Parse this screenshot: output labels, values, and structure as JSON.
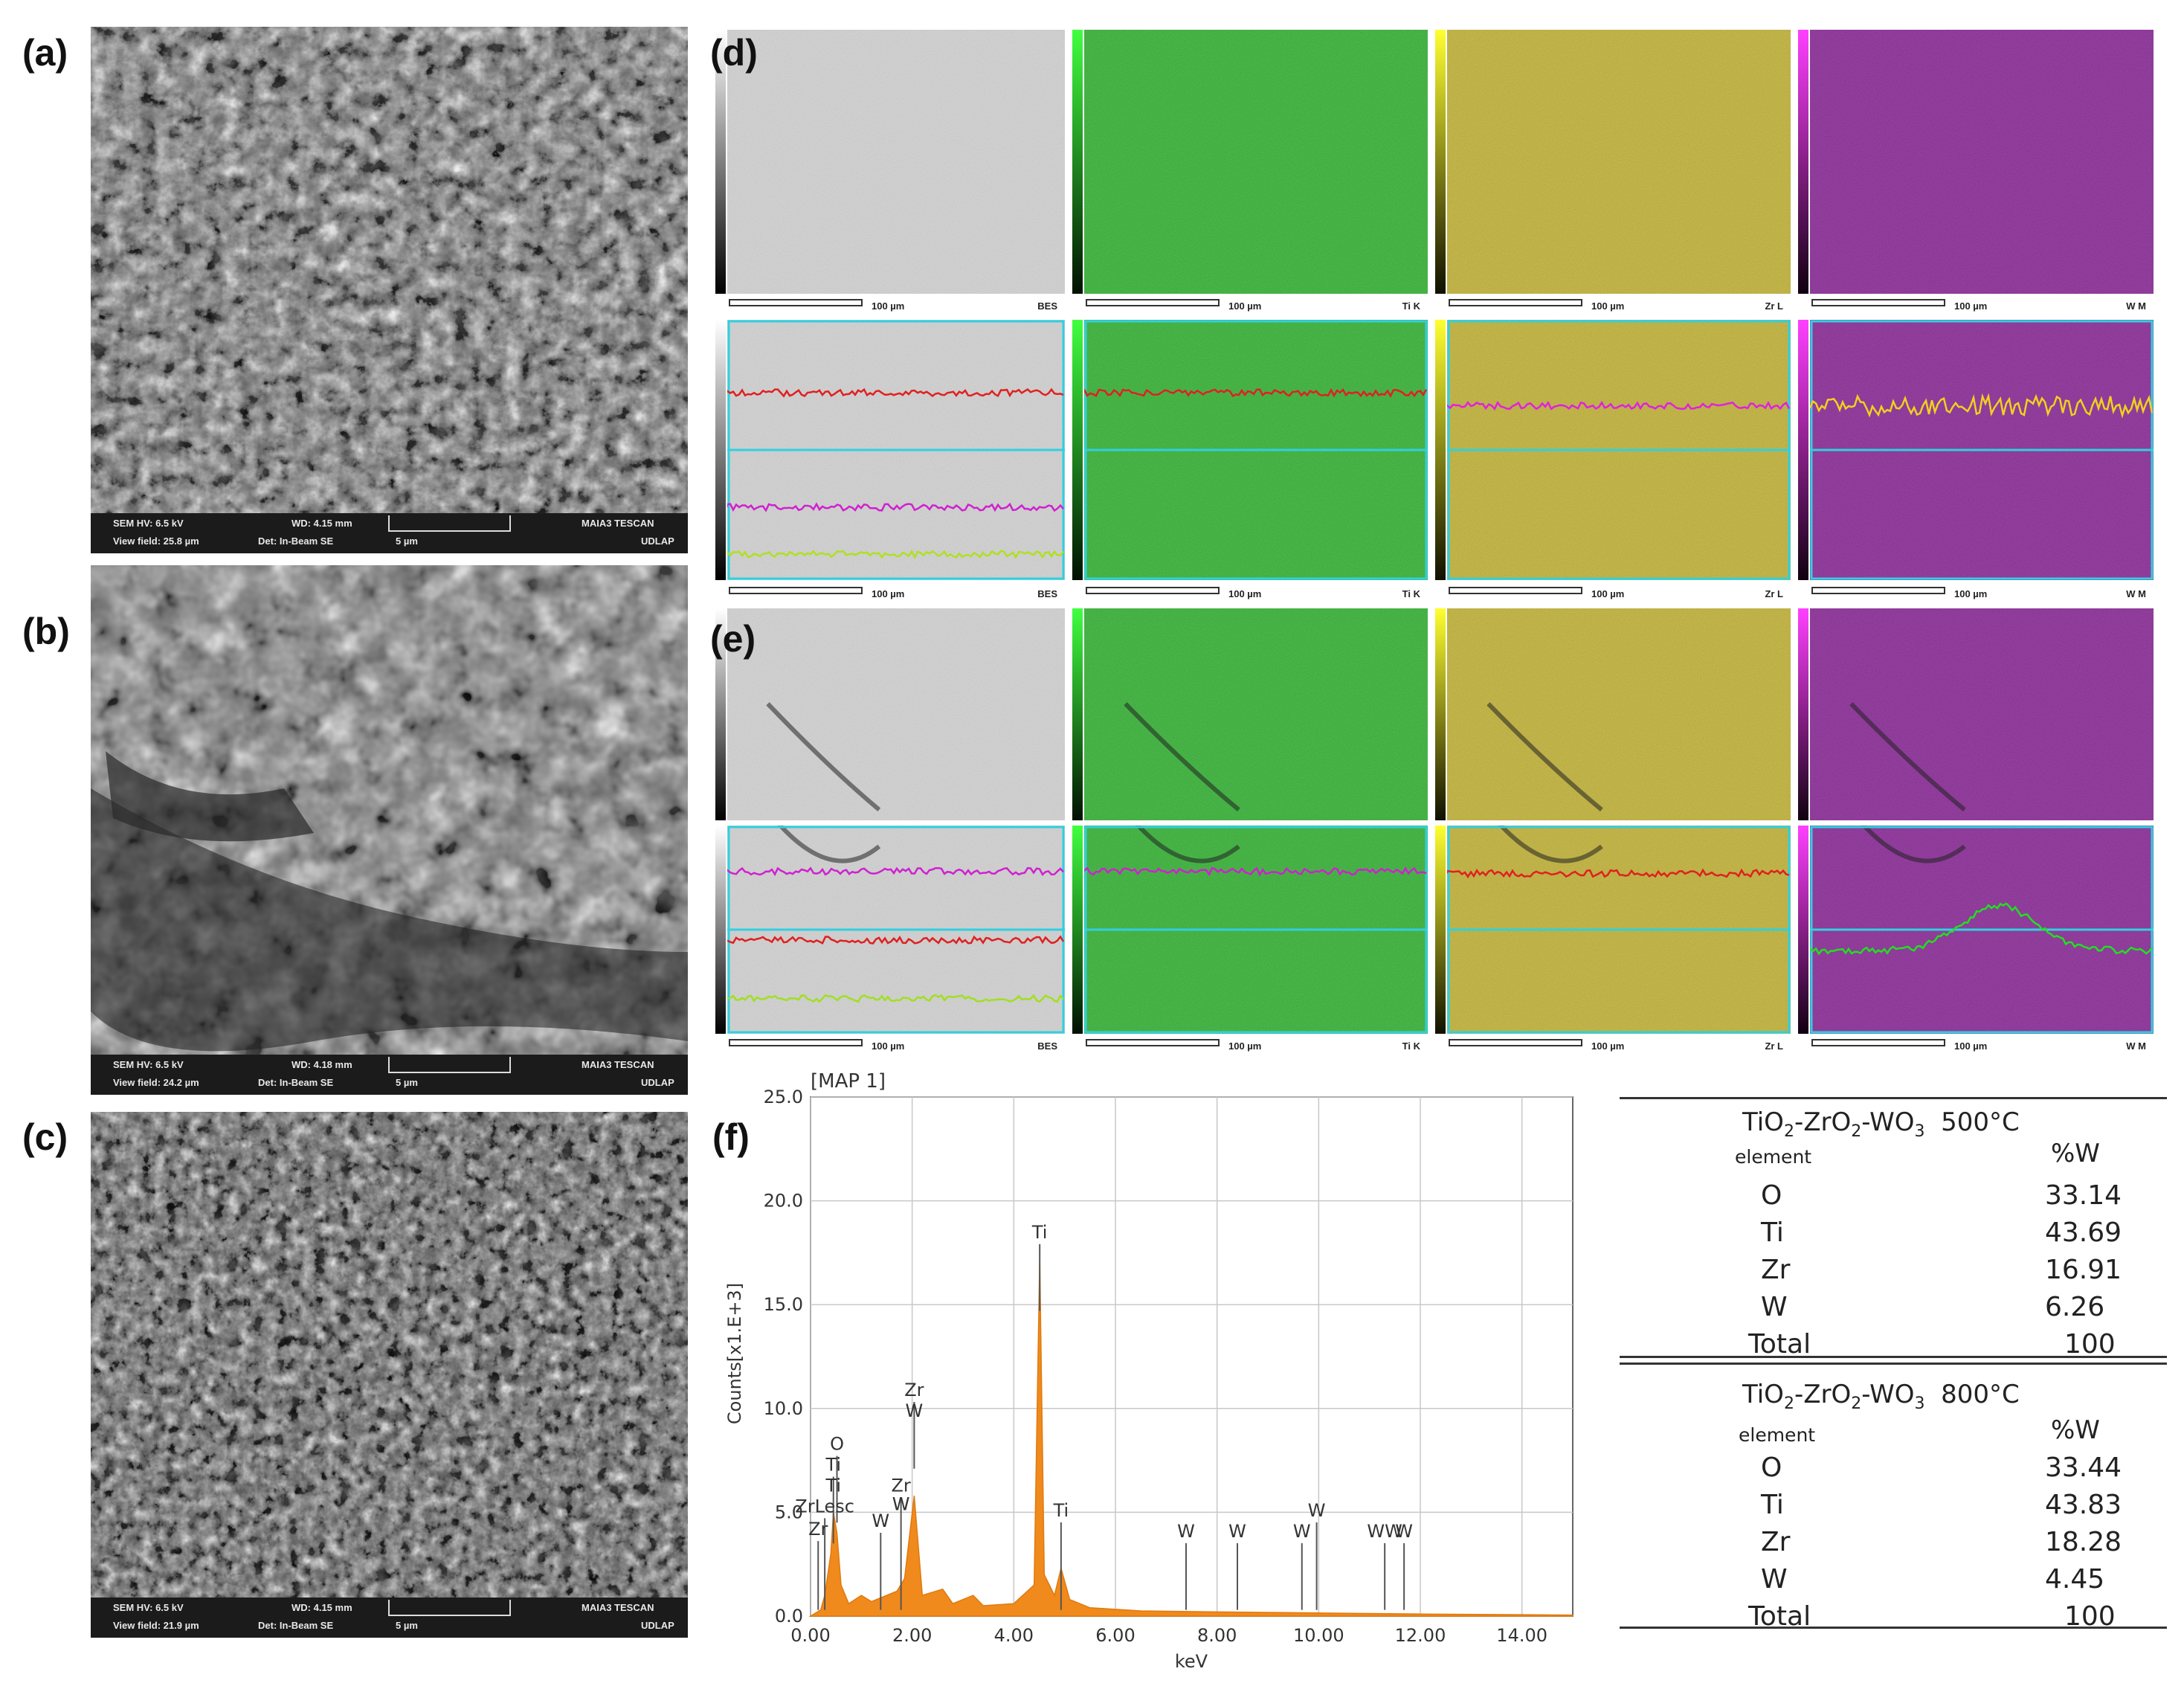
{
  "panels": {
    "a": "(a)",
    "b": "(b)",
    "c": "(c)",
    "d": "(d)",
    "e": "(e)",
    "f": "(f)"
  },
  "sem": [
    {
      "hv": "SEM HV: 6.5 kV",
      "wd": "WD: 4.15 mm",
      "vf": "View field: 25.8 µm",
      "det": "Det: In-Beam SE",
      "scale": "5 µm",
      "brand": "MAIA3 TESCAN",
      "lab": "UDLAP"
    },
    {
      "hv": "SEM HV: 6.5 kV",
      "wd": "WD: 4.18 mm",
      "vf": "View field: 24.2 µm",
      "det": "Det: In-Beam SE",
      "scale": "5 µm",
      "brand": "MAIA3 TESCAN",
      "lab": "UDLAP"
    },
    {
      "hv": "SEM HV: 6.5 kV",
      "wd": "WD: 4.15 mm",
      "vf": "View field: 21.9 µm",
      "det": "Det: In-Beam SE",
      "scale": "5 µm",
      "brand": "MAIA3 TESCAN",
      "lab": "UDLAP"
    }
  ],
  "map_labels": {
    "scale": "100 µm",
    "bes": "BES",
    "ti": "Ti K",
    "zr": "Zr L",
    "w": "W M"
  },
  "colors": {
    "bes": "#d4d4d4",
    "ti": "#1fb51f",
    "zr": "#c9b426",
    "w": "#8a1a9a",
    "orange": "#f08a1c"
  },
  "chart_data": {
    "type": "line",
    "title": "[MAP 1]",
    "xlabel": "keV",
    "ylabel": "Counts[x1.E+3]",
    "xlim": [
      0,
      15
    ],
    "ylim": [
      0,
      25
    ],
    "xticks": [
      "0.00",
      "2.00",
      "4.00",
      "6.00",
      "8.00",
      "10.00",
      "12.00",
      "14.00"
    ],
    "yticks": [
      "0.0",
      "5.0",
      "10.0",
      "15.0",
      "20.0",
      "25.0"
    ],
    "x": [
      0.0,
      0.2,
      0.28,
      0.4,
      0.45,
      0.52,
      0.6,
      0.75,
      1.0,
      1.2,
      1.7,
      1.85,
      2.04,
      2.2,
      2.6,
      2.8,
      3.2,
      3.4,
      4.0,
      4.4,
      4.51,
      4.6,
      4.8,
      4.93,
      5.1,
      5.5,
      6.5,
      8.0,
      10.0,
      12.0,
      15.0
    ],
    "y": [
      0.0,
      0.3,
      1.0,
      3.0,
      5.0,
      4.0,
      1.5,
      0.6,
      1.0,
      0.7,
      1.2,
      1.8,
      5.8,
      1.0,
      1.3,
      0.6,
      1.0,
      0.5,
      0.6,
      1.5,
      17.2,
      2.0,
      1.0,
      2.3,
      0.8,
      0.4,
      0.25,
      0.2,
      0.15,
      0.1,
      0.05
    ],
    "peaks": [
      {
        "label": "Ti",
        "x": 4.51,
        "y": 18.2
      },
      {
        "label": "Ti",
        "x": 4.93,
        "y": 4.8
      },
      {
        "label": "Zr",
        "x": 2.04,
        "y": 10.6
      },
      {
        "label": "W",
        "x": 2.04,
        "y": 9.6
      },
      {
        "label": "Zr",
        "x": 1.78,
        "y": 6.0
      },
      {
        "label": "W",
        "x": 1.78,
        "y": 5.1
      },
      {
        "label": "O",
        "x": 0.52,
        "y": 8.0
      },
      {
        "label": "Ti",
        "x": 0.45,
        "y": 7.0
      },
      {
        "label": "Ti",
        "x": 0.45,
        "y": 6.0
      },
      {
        "label": "ZrLesc",
        "x": 0.28,
        "y": 5.0
      },
      {
        "label": "Zr",
        "x": 0.15,
        "y": 3.9
      },
      {
        "label": "W",
        "x": 1.38,
        "y": 4.3
      },
      {
        "label": "W",
        "x": 7.39,
        "y": 3.8
      },
      {
        "label": "W",
        "x": 8.4,
        "y": 3.8
      },
      {
        "label": "W",
        "x": 9.67,
        "y": 3.8
      },
      {
        "label": "W",
        "x": 9.96,
        "y": 4.8
      },
      {
        "label": "WW",
        "x": 11.3,
        "y": 3.8
      },
      {
        "label": "W",
        "x": 11.68,
        "y": 3.8
      }
    ]
  },
  "table": {
    "sections": [
      {
        "title_main": "TiO",
        "title_rest": "-ZrO",
        "title_rest2": "-WO",
        "title_temp": "500°C",
        "col1": "element",
        "col2": "%W",
        "rows": [
          {
            "el": "O",
            "val": "33.14"
          },
          {
            "el": "Ti",
            "val": "43.69"
          },
          {
            "el": "Zr",
            "val": "16.91"
          },
          {
            "el": "W",
            "val": "6.26"
          }
        ],
        "total_label": "Total",
        "total_val": "100"
      },
      {
        "title_main": "TiO",
        "title_rest": "-ZrO",
        "title_rest2": "-WO",
        "title_temp": "800°C",
        "col1": "element",
        "col2": "%W",
        "rows": [
          {
            "el": "O",
            "val": "33.44"
          },
          {
            "el": "Ti",
            "val": "43.83"
          },
          {
            "el": "Zr",
            "val": "18.28"
          },
          {
            "el": "W",
            "val": "4.45"
          }
        ],
        "total_label": "Total",
        "total_val": "100"
      }
    ],
    "sub2": "2",
    "sub3": "3"
  }
}
